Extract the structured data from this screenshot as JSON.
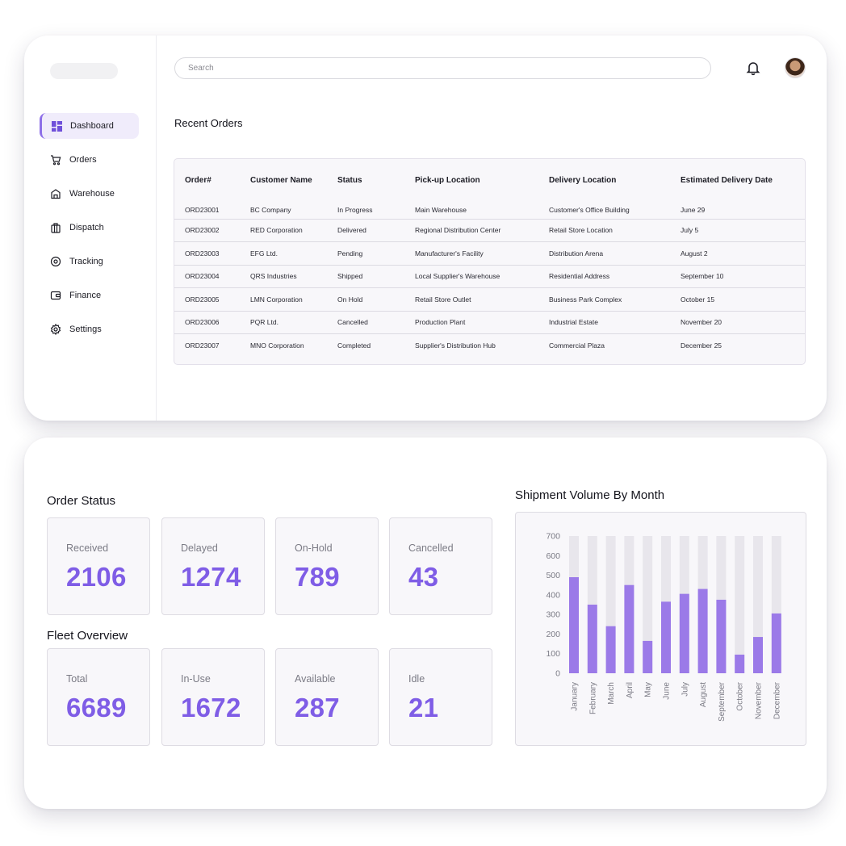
{
  "search": {
    "placeholder": "Search"
  },
  "header": {
    "bell_icon": "bell-icon",
    "avatar": "user-avatar"
  },
  "sidebar": {
    "items": [
      {
        "label": "Dashboard",
        "icon": "dashboard-icon",
        "active": true
      },
      {
        "label": "Orders",
        "icon": "cart-icon"
      },
      {
        "label": "Warehouse",
        "icon": "warehouse-icon"
      },
      {
        "label": "Dispatch",
        "icon": "dispatch-icon"
      },
      {
        "label": "Tracking",
        "icon": "location-icon"
      },
      {
        "label": "Finance",
        "icon": "wallet-icon"
      },
      {
        "label": "Settings",
        "icon": "gear-icon"
      }
    ]
  },
  "orders": {
    "title": "Recent Orders",
    "columns": [
      "Order#",
      "Customer Name",
      "Status",
      "Pick-up Location",
      "Delivery Location",
      "Estimated Delivery Date"
    ],
    "rows": [
      [
        "ORD23001",
        "BC Company",
        "In Progress",
        "Main Warehouse",
        "Customer's Office Building",
        "June 29"
      ],
      [
        "ORD23002",
        "RED Corporation",
        "Delivered",
        "Regional Distribution Center",
        "Retail Store Location",
        "July 5"
      ],
      [
        "ORD23003",
        "EFG Ltd.",
        "Pending",
        "Manufacturer's Facility",
        "Distribution Arena",
        "August 2"
      ],
      [
        "ORD23004",
        "QRS Industries",
        "Shipped",
        "Local Supplier's Warehouse",
        "Residential Address",
        "September 10"
      ],
      [
        "ORD23005",
        "LMN Corporation",
        "On Hold",
        "Retail Store Outlet",
        "Business Park Complex",
        "October 15"
      ],
      [
        "ORD23006",
        "PQR Ltd.",
        "Cancelled",
        "Production Plant",
        "Industrial Estate",
        "November 20"
      ],
      [
        "ORD23007",
        "MNO Corporation",
        "Completed",
        "Supplier's Distribution Hub",
        "Commercial Plaza",
        "December 25"
      ]
    ]
  },
  "order_status": {
    "title": "Order Status",
    "stats": [
      {
        "label": "Received",
        "value": "2106"
      },
      {
        "label": "Delayed",
        "value": "1274"
      },
      {
        "label": "On-Hold",
        "value": "789"
      },
      {
        "label": "Cancelled",
        "value": "43"
      }
    ]
  },
  "fleet": {
    "title": "Fleet Overview",
    "stats": [
      {
        "label": "Total",
        "value": "6689"
      },
      {
        "label": "In-Use",
        "value": "1672"
      },
      {
        "label": "Available",
        "value": "287"
      },
      {
        "label": "Idle",
        "value": "21"
      }
    ]
  },
  "colors": {
    "accent": "#7f5de6",
    "bar": "#9b7ae8",
    "bar_track": "#e8e6ec"
  },
  "chart_data": {
    "type": "bar",
    "title": "Shipment Volume By Month",
    "categories": [
      "January",
      "February",
      "March",
      "April",
      "May",
      "June",
      "July",
      "August",
      "September",
      "October",
      "November",
      "December"
    ],
    "values": [
      490,
      350,
      240,
      450,
      165,
      365,
      405,
      430,
      375,
      95,
      185,
      305
    ],
    "max_track": 700,
    "ylim": [
      0,
      700
    ],
    "yticks": [
      0,
      100,
      200,
      300,
      400,
      500,
      600,
      700
    ],
    "grid": false,
    "legend": "none"
  }
}
